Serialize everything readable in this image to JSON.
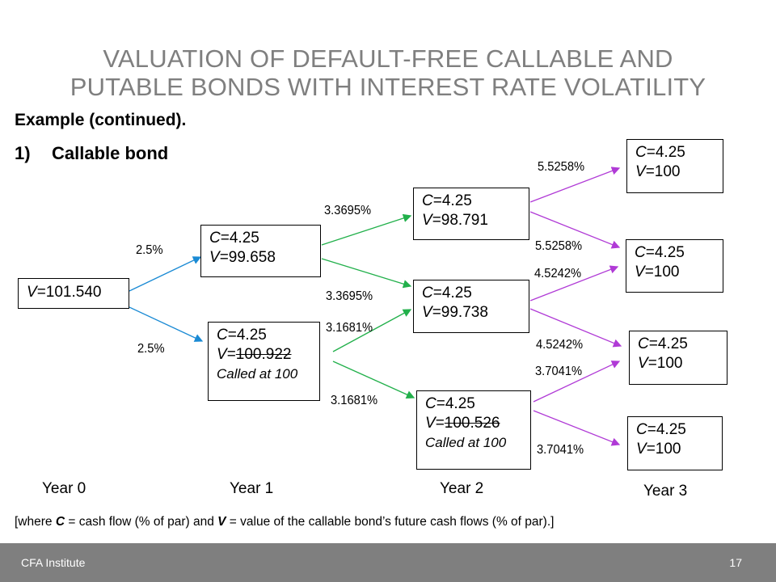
{
  "title_line1": "VALUATION OF DEFAULT-FREE CALLABLE AND",
  "title_line2": "PUTABLE BONDS WITH INTEREST RATE VOLATILITY",
  "subtitle": "Example (continued).",
  "item_number": "1)",
  "item_label": "Callable bond",
  "nodes": {
    "y0": {
      "v": "101.540"
    },
    "y1_up": {
      "c": "4.25",
      "v": "99.658"
    },
    "y1_down": {
      "c": "4.25",
      "v": "100.922",
      "called": "Called at 100"
    },
    "y2_up": {
      "c": "4.25",
      "v": "98.791"
    },
    "y2_mid": {
      "c": "4.25",
      "v": "99.738"
    },
    "y2_down": {
      "c": "4.25",
      "v": "100.526",
      "called": "Called at 100"
    },
    "y3_1": {
      "c": "4.25",
      "v": "100"
    },
    "y3_2": {
      "c": "4.25",
      "v": "100"
    },
    "y3_3": {
      "c": "4.25",
      "v": "100"
    },
    "y3_4": {
      "c": "4.25",
      "v": "100"
    }
  },
  "rates": {
    "r0_up": "2.5%",
    "r0_down": "2.5%",
    "r1u_up": "3.3695%",
    "r1u_down": "3.3695%",
    "r1d_up": "3.1681%",
    "r1d_down": "3.1681%",
    "r2u_up": "5.5258%",
    "r2u_down": "5.5258%",
    "r2m_up": "4.5242%",
    "r2m_down": "4.5242%",
    "r2d_up": "3.7041%",
    "r2d_down": "3.7041%"
  },
  "years": {
    "y0": "Year 0",
    "y1": "Year 1",
    "y2": "Year 2",
    "y3": "Year 3"
  },
  "note": {
    "p1": "[where ",
    "c": "C",
    "p2": " = cash flow (% of par) and ",
    "v": "V",
    "p3": " = value of the callable bond’s future cash flows (% of par).]"
  },
  "labels": {
    "c": "C",
    "v": "V",
    "eq": "="
  },
  "footer": {
    "brand": "CFA Institute",
    "page": "17"
  },
  "colors": {
    "blue": "#1a8ad4",
    "green": "#22b04b",
    "purple": "#b03ad6",
    "footer": "#7f7f7f",
    "title": "#7f7f7f"
  }
}
